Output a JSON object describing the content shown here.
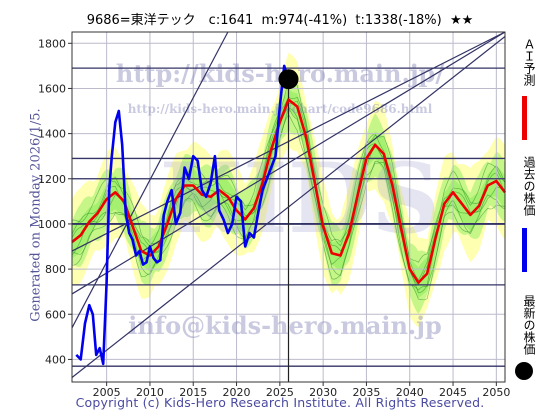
{
  "header": {
    "title": "9686=東洋テック　c:1641  m:974(-41%)  t:1338(-18%)  ★★"
  },
  "side_text": "Generated on Monday 2026/1/5.",
  "copyright": "Copyright (c) Kids-Hero Research Institute. All Rights Reserved.",
  "watermarks": {
    "url": "http://kids-hero.main.jp/",
    "page": "http://kids-hero.main.jp/chart/code9686.html",
    "email": "info@kids-hero.main.jp",
    "logo": "KIDS"
  },
  "legend": {
    "forecast": "ＡＩ予測",
    "past": "過去の株価",
    "latest": "最新の株価"
  },
  "colors": {
    "forecast": "#ee0000",
    "past": "#0000ee",
    "band_light": "#ffffaa",
    "band_green": "#99ee66",
    "channel": "#333366",
    "grid": "#bbbbcc"
  },
  "chart_data": {
    "type": "line",
    "title": "9686=東洋テック　c:1641  m:974(-41%)  t:1338(-18%)  ★★",
    "xlim": [
      2001,
      2051
    ],
    "ylim": [
      300,
      1850
    ],
    "x_ticks": [
      2005,
      2010,
      2015,
      2020,
      2025,
      2030,
      2035,
      2040,
      2045,
      2050
    ],
    "y_ticks": [
      400,
      600,
      800,
      1000,
      1200,
      1400,
      1600,
      1800
    ],
    "horizontal_levels": [
      1690,
      1290,
      1200,
      1000,
      730,
      370
    ],
    "current": {
      "year": 2026.0,
      "price": 1641
    },
    "m_value": 974,
    "m_change": "-41%",
    "t_value": 1338,
    "t_change": "-18%",
    "channel_lines": [
      [
        [
          2001,
          540
        ],
        [
          2019,
          1850
        ]
      ],
      [
        [
          2001,
          320
        ],
        [
          2051,
          1830
        ]
      ],
      [
        [
          2001,
          690
        ],
        [
          2051,
          1850
        ]
      ],
      [
        [
          2001,
          880
        ],
        [
          2051,
          1850
        ]
      ]
    ],
    "series": [
      {
        "name": "過去の株価",
        "x": [
          2001.5,
          2002,
          2002.5,
          2003,
          2003.4,
          2003.8,
          2004.2,
          2004.6,
          2005,
          2005.3,
          2005.6,
          2006,
          2006.4,
          2006.8,
          2007.2,
          2007.6,
          2008,
          2008.4,
          2008.8,
          2009.2,
          2009.6,
          2010,
          2010.4,
          2010.8,
          2011.2,
          2011.6,
          2012,
          2012.5,
          2013,
          2013.5,
          2014,
          2014.5,
          2015,
          2015.5,
          2016,
          2016.5,
          2017,
          2017.5,
          2018,
          2018.5,
          2019,
          2019.5,
          2020,
          2020.5,
          2021,
          2021.5,
          2022,
          2022.5,
          2023,
          2023.5,
          2024,
          2024.5,
          2025,
          2025.5,
          2026
        ],
        "values": [
          420,
          400,
          560,
          640,
          600,
          420,
          450,
          380,
          740,
          1150,
          1300,
          1450,
          1500,
          1350,
          1050,
          960,
          930,
          860,
          880,
          820,
          830,
          900,
          850,
          830,
          840,
          1040,
          1100,
          1150,
          1000,
          1050,
          1250,
          1200,
          1300,
          1280,
          1150,
          1120,
          1180,
          1300,
          1060,
          1020,
          960,
          1000,
          1120,
          1100,
          900,
          960,
          940,
          1050,
          1150,
          1200,
          1250,
          1300,
          1520,
          1700,
          1641
        ]
      },
      {
        "name": "ＡＩ予測",
        "x": [
          2001,
          2002,
          2003,
          2004,
          2005,
          2006,
          2007,
          2008,
          2009,
          2010,
          2011,
          2012,
          2013,
          2014,
          2015,
          2016,
          2017,
          2018,
          2019,
          2020,
          2021,
          2022,
          2023,
          2024,
          2025,
          2026,
          2027,
          2028,
          2029,
          2030,
          2031,
          2032,
          2033,
          2034,
          2035,
          2036,
          2037,
          2038,
          2039,
          2040,
          2041,
          2042,
          2043,
          2044,
          2045,
          2046,
          2047,
          2048,
          2049,
          2050,
          2051
        ],
        "values": [
          920,
          950,
          1010,
          1050,
          1110,
          1140,
          1100,
          990,
          880,
          860,
          900,
          1000,
          1110,
          1170,
          1170,
          1130,
          1120,
          1150,
          1120,
          1060,
          1020,
          1070,
          1180,
          1330,
          1450,
          1550,
          1520,
          1390,
          1190,
          990,
          870,
          860,
          960,
          1130,
          1290,
          1350,
          1310,
          1170,
          980,
          800,
          740,
          780,
          940,
          1090,
          1140,
          1090,
          1040,
          1080,
          1170,
          1190,
          1140
        ]
      }
    ]
  }
}
